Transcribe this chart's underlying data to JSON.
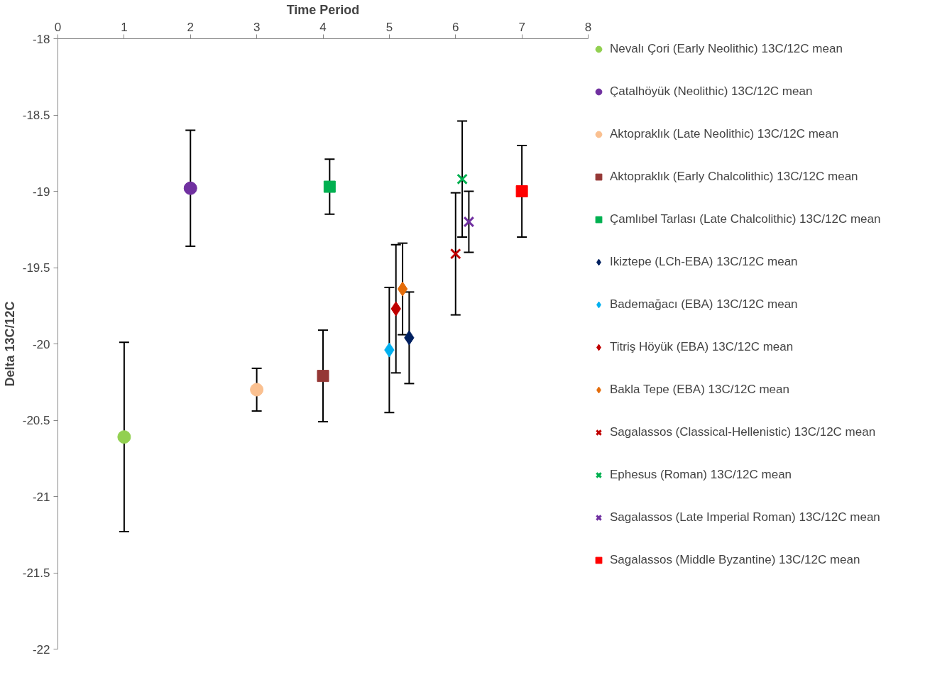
{
  "chart_data": {
    "type": "scatter",
    "xlabel": "Time Period",
    "ylabel": "Delta 13C/12C",
    "xlim": [
      0,
      8
    ],
    "xticks": [
      0,
      1,
      2,
      3,
      4,
      5,
      6,
      7,
      8
    ],
    "ylim": [
      -22,
      -18
    ],
    "yticks": [
      -22,
      -21.5,
      -21,
      -20.5,
      -20,
      -19.5,
      -19,
      -18.5,
      -18
    ],
    "grid": false,
    "legend": "right",
    "series": [
      {
        "name": "Nevalı Çori (Early Neolithic) 13C/12C mean",
        "color": "#92d050",
        "marker": "circle",
        "x": [
          1
        ],
        "values": [
          -20.61
        ],
        "errors": [
          0.62
        ]
      },
      {
        "name": "Çatalhöyük (Neolithic) 13C/12C mean",
        "color": "#7030a0",
        "marker": "circle",
        "x": [
          2
        ],
        "values": [
          -18.98
        ],
        "errors": [
          0.38
        ]
      },
      {
        "name": "Aktopraklık (Late Neolithic) 13C/12C mean",
        "color": "#fac090",
        "marker": "circle",
        "x": [
          3
        ],
        "values": [
          -20.3
        ],
        "errors": [
          0.14
        ]
      },
      {
        "name": "Aktopraklık (Early Chalcolithic) 13C/12C mean",
        "color": "#953735",
        "marker": "square",
        "x": [
          4
        ],
        "values": [
          -20.21
        ],
        "errors": [
          0.3
        ]
      },
      {
        "name": "Çamlıbel Tarlası (Late Chalcolithic) 13C/12C mean",
        "color": "#00b050",
        "marker": "square",
        "x": [
          4.1
        ],
        "values": [
          -18.97
        ],
        "errors": [
          0.18
        ]
      },
      {
        "name": "Ikiztepe (LCh-EBA) 13C/12C mean",
        "color": "#002060",
        "marker": "diamond",
        "x": [
          5.3
        ],
        "values": [
          -19.96
        ],
        "errors": [
          0.3
        ]
      },
      {
        "name": "Bademağacı (EBA) 13C/12C mean",
        "color": "#00b0f0",
        "marker": "diamond",
        "x": [
          5.0
        ],
        "values": [
          -20.04
        ],
        "errors": [
          0.41
        ]
      },
      {
        "name": "Titriş Höyük (EBA) 13C/12C mean",
        "color": "#c00000",
        "marker": "diamond",
        "x": [
          5.1
        ],
        "values": [
          -19.77
        ],
        "errors": [
          0.42
        ]
      },
      {
        "name": "Bakla Tepe (EBA) 13C/12C mean",
        "color": "#e46c0a",
        "marker": "diamond",
        "x": [
          5.2
        ],
        "values": [
          -19.64
        ],
        "errors": [
          0.3
        ]
      },
      {
        "name": "Sagalassos (Classical-Hellenistic) 13C/12C mean",
        "color": "#c00000",
        "marker": "cross",
        "x": [
          6.0
        ],
        "values": [
          -19.41
        ],
        "errors": [
          0.4
        ]
      },
      {
        "name": "Ephesus (Roman) 13C/12C mean",
        "color": "#00b050",
        "marker": "cross",
        "x": [
          6.1
        ],
        "values": [
          -18.92
        ],
        "errors": [
          0.38
        ]
      },
      {
        "name": "Sagalassos (Late Imperial Roman) 13C/12C mean",
        "color": "#7030a0",
        "marker": "cross",
        "x": [
          6.2
        ],
        "values": [
          -19.2
        ],
        "errors": [
          0.2
        ]
      },
      {
        "name": "Sagalassos (Middle Byzantine) 13C/12C mean",
        "color": "#ff0000",
        "marker": "square",
        "x": [
          7.0
        ],
        "values": [
          -19.0
        ],
        "errors": [
          0.3
        ]
      }
    ]
  }
}
